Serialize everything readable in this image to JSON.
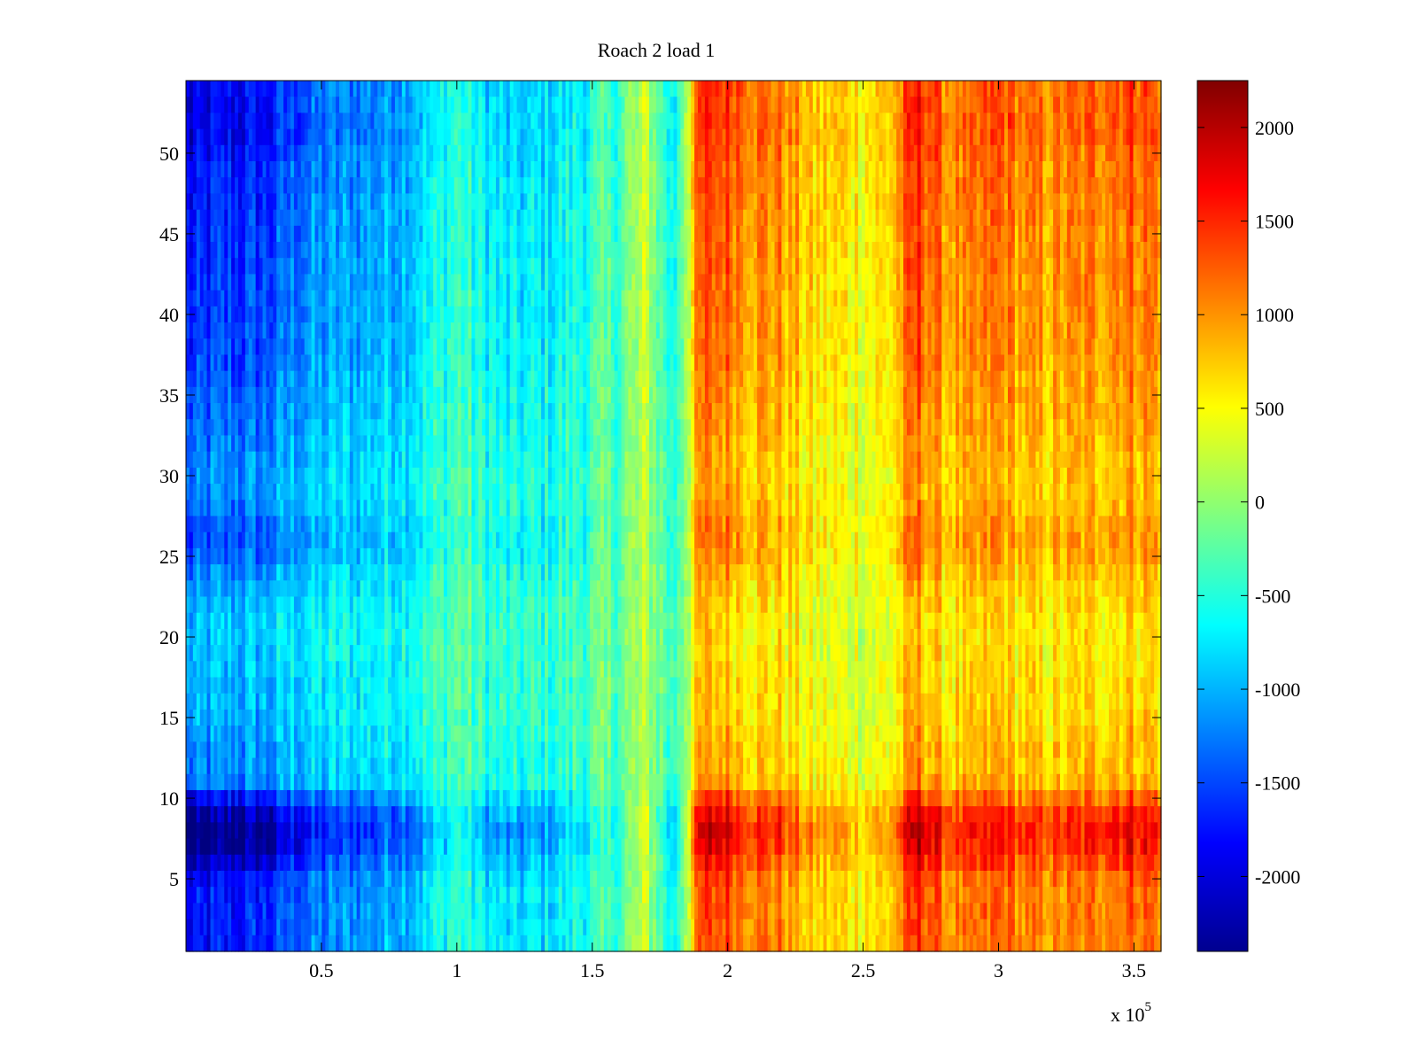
{
  "chart_data": {
    "type": "heatmap",
    "title": "Roach 2 load 1",
    "xlabel": "",
    "ylabel": "",
    "x_multiplier_label": {
      "base": "x 10",
      "exponent": "5"
    },
    "xlim": [
      0,
      3.6
    ],
    "ylim": [
      0.5,
      54.5
    ],
    "x_ticks": [
      {
        "value": 0.5,
        "label": "0.5"
      },
      {
        "value": 1,
        "label": "1"
      },
      {
        "value": 1.5,
        "label": "1.5"
      },
      {
        "value": 2,
        "label": "2"
      },
      {
        "value": 2.5,
        "label": "2.5"
      },
      {
        "value": 3,
        "label": "3"
      },
      {
        "value": 3.5,
        "label": "3.5"
      }
    ],
    "y_ticks": [
      {
        "value": 5,
        "label": "5"
      },
      {
        "value": 10,
        "label": "10"
      },
      {
        "value": 15,
        "label": "15"
      },
      {
        "value": 20,
        "label": "20"
      },
      {
        "value": 25,
        "label": "25"
      },
      {
        "value": 30,
        "label": "30"
      },
      {
        "value": 35,
        "label": "35"
      },
      {
        "value": 40,
        "label": "40"
      },
      {
        "value": 45,
        "label": "45"
      },
      {
        "value": 50,
        "label": "50"
      }
    ],
    "colorbar": {
      "colormap": "jet",
      "clim": [
        -2400,
        2250
      ],
      "ticks": [
        {
          "value": 2000,
          "label": "2000"
        },
        {
          "value": 1500,
          "label": "1500"
        },
        {
          "value": 1000,
          "label": "1000"
        },
        {
          "value": 500,
          "label": "500"
        },
        {
          "value": 0,
          "label": "0"
        },
        {
          "value": -500,
          "label": "-500"
        },
        {
          "value": -1000,
          "label": "-1000"
        },
        {
          "value": -1500,
          "label": "-1500"
        },
        {
          "value": -2000,
          "label": "-2000"
        }
      ]
    },
    "rows": 54,
    "columns_x": [
      0.0,
      0.1,
      0.2,
      0.3,
      0.4,
      0.5,
      0.6,
      0.7,
      0.8,
      0.9,
      1.0,
      1.1,
      1.2,
      1.3,
      1.4,
      1.5,
      1.6,
      1.7,
      1.8,
      1.9,
      2.0,
      2.1,
      2.2,
      2.3,
      2.4,
      2.5,
      2.6,
      2.7,
      2.8,
      2.9,
      3.0,
      3.1,
      3.2,
      3.3,
      3.4,
      3.5,
      3.6
    ],
    "base_profile": [
      -1900,
      -1750,
      -1700,
      -1650,
      -1350,
      -1250,
      -1150,
      -1100,
      -950,
      -750,
      -400,
      -700,
      -850,
      -800,
      -650,
      -500,
      -300,
      200,
      -700,
      1300,
      1350,
      1100,
      1050,
      700,
      650,
      600,
      700,
      1500,
      1050,
      1000,
      1250,
      1000,
      1000,
      1050,
      1200,
      1250,
      1150
    ],
    "row_profile": [
      1.0,
      1.0,
      1.0,
      1.0,
      1.05,
      1.2,
      1.35,
      1.4,
      1.3,
      1.05,
      0.75,
      0.7,
      0.7,
      0.65,
      0.62,
      0.6,
      0.6,
      0.58,
      0.55,
      0.55,
      0.55,
      0.6,
      0.65,
      0.7,
      0.8,
      0.85,
      0.82,
      0.75,
      0.7,
      0.7,
      0.72,
      0.75,
      0.78,
      0.8,
      0.82,
      0.85,
      0.88,
      0.9,
      0.9,
      0.92,
      0.92,
      0.93,
      0.94,
      0.95,
      0.95,
      0.97,
      0.98,
      1.0,
      1.0,
      1.05,
      1.1,
      1.1,
      1.1,
      1.08
    ]
  }
}
